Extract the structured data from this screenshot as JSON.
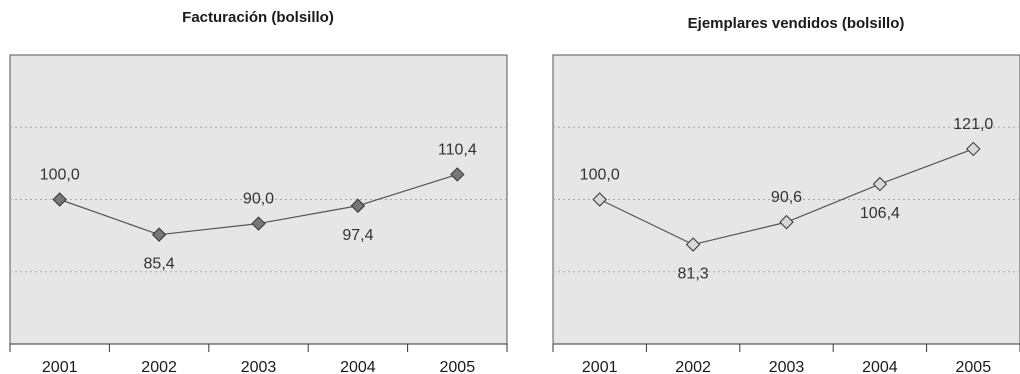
{
  "colors": {
    "plot_background": "#e6e6e6",
    "gridline": "#aaaaaa",
    "line": "#555555",
    "marker_left": "#777777",
    "marker_right": "#d8d8d8"
  },
  "chart_data": [
    {
      "type": "line",
      "title": "Facturación (bolsillo)",
      "categories": [
        "2001",
        "2002",
        "2003",
        "2004",
        "2005"
      ],
      "values": [
        100.0,
        85.4,
        90.0,
        97.4,
        110.4
      ],
      "data_labels": [
        "100,0",
        "85,4",
        "90,0",
        "97,4",
        "110,4"
      ],
      "label_position": [
        "above",
        "below",
        "above",
        "below",
        "above"
      ],
      "ylim": [
        40,
        160
      ],
      "gridlines": [
        130,
        100,
        70
      ],
      "marker": "diamond-filled-gray",
      "legend": "none"
    },
    {
      "type": "line",
      "title": "Ejemplares vendidos (bolsillo)",
      "categories": [
        "2001",
        "2002",
        "2003",
        "2004",
        "2005"
      ],
      "values": [
        100.0,
        81.3,
        90.6,
        106.4,
        121.0
      ],
      "data_labels": [
        "100,0",
        "81,3",
        "90,6",
        "106,4",
        "121,0"
      ],
      "label_position": [
        "above",
        "below",
        "above",
        "below",
        "above"
      ],
      "ylim": [
        40,
        160
      ],
      "gridlines": [
        130,
        100,
        70
      ],
      "marker": "diamond-light",
      "legend": "none"
    }
  ]
}
